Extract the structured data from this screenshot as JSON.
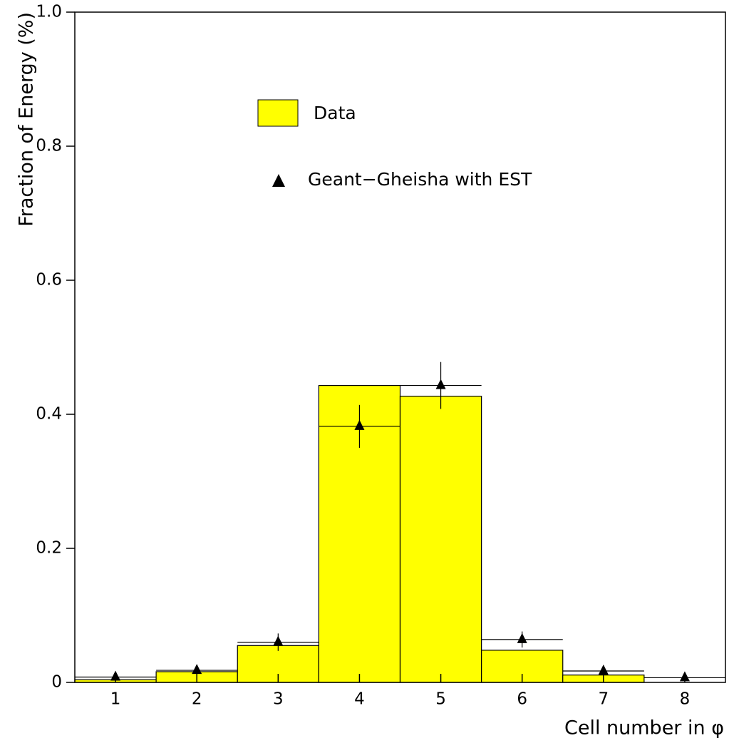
{
  "chart_data": {
    "type": "histogram",
    "xlabel": "Cell number in φ",
    "ylabel": "Fraction of Energy (%)",
    "bins": [
      0.5,
      1.5,
      2.5,
      3.5,
      4.5,
      5.5,
      6.5,
      7.5,
      8.5
    ],
    "xlim": [
      0.5,
      8.5
    ],
    "xticks": [
      1,
      2,
      3,
      4,
      5,
      6,
      7,
      8
    ],
    "ylim": [
      0,
      1
    ],
    "yticks": [
      0,
      0.2,
      0.4,
      0.6,
      0.8,
      {
        "value": 1,
        "label": "1.0"
      }
    ],
    "series": [
      {
        "name": "Data",
        "color": "#ffff00",
        "style": "bar",
        "values": [
          0.004,
          0.016,
          0.055,
          0.443,
          0.427,
          0.048,
          0.011,
          0
        ]
      },
      {
        "name": "Geant−Gheisha with EST",
        "color": "#000000",
        "style": "points",
        "values": [
          0.008,
          0.018,
          0.06,
          0.382,
          0.443,
          0.064,
          0.017,
          0.007
        ],
        "errors": [
          0.004,
          0.004,
          0.013,
          0.032,
          0.035,
          0.012,
          0.005,
          0.003
        ]
      }
    ]
  }
}
